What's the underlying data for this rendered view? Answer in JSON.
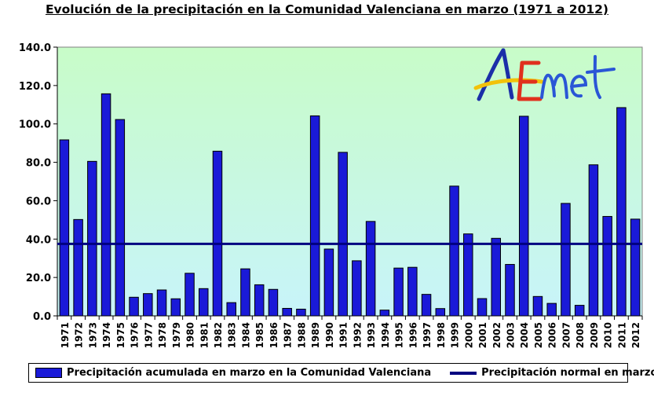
{
  "chart_data": {
    "type": "bar",
    "title": "Evolución de la precipitación en la Comunidad Valenciana en marzo (1971 a 2012)",
    "categories": [
      "1971",
      "1972",
      "1973",
      "1974",
      "1975",
      "1976",
      "1977",
      "1978",
      "1979",
      "1980",
      "1981",
      "1982",
      "1983",
      "1984",
      "1985",
      "1986",
      "1987",
      "1988",
      "1989",
      "1990",
      "1991",
      "1992",
      "1993",
      "1994",
      "1995",
      "1996",
      "1997",
      "1998",
      "1999",
      "2000",
      "2001",
      "2002",
      "2003",
      "2004",
      "2005",
      "2006",
      "2007",
      "2008",
      "2009",
      "2010",
      "2011",
      "2012"
    ],
    "series": [
      {
        "name": "Precipitación acumulada en marzo en la Comunidad Valenciana",
        "type": "bar",
        "color": "#1a1ad8",
        "values": [
          91.7,
          50.2,
          80.5,
          115.7,
          102.3,
          9.7,
          11.6,
          13.5,
          8.9,
          22.2,
          14.2,
          85.8,
          6.9,
          24.5,
          16.2,
          13.8,
          3.9,
          3.5,
          104.2,
          34.8,
          85.2,
          28.7,
          49.2,
          3.0,
          24.9,
          25.3,
          11.2,
          3.8,
          67.6,
          42.7,
          9.0,
          40.4,
          26.8,
          104.0,
          10.1,
          6.5,
          58.6,
          5.5,
          78.7,
          51.8,
          108.5,
          50.4
        ]
      },
      {
        "name": "Precipitación normal en marzo",
        "type": "line",
        "color": "#000080",
        "value": 37.5
      }
    ],
    "y_ticks": [
      "0.0",
      "20.0",
      "40.0",
      "60.0",
      "80.0",
      "100.0",
      "120.0",
      "140.0"
    ],
    "ylim": [
      0,
      140
    ],
    "xlabel": "",
    "ylabel": "",
    "grid": false,
    "legend_position": "bottom",
    "background_gradient": [
      "#c8fcc8",
      "#c8f4fa"
    ],
    "logo_text": "AEmet"
  }
}
